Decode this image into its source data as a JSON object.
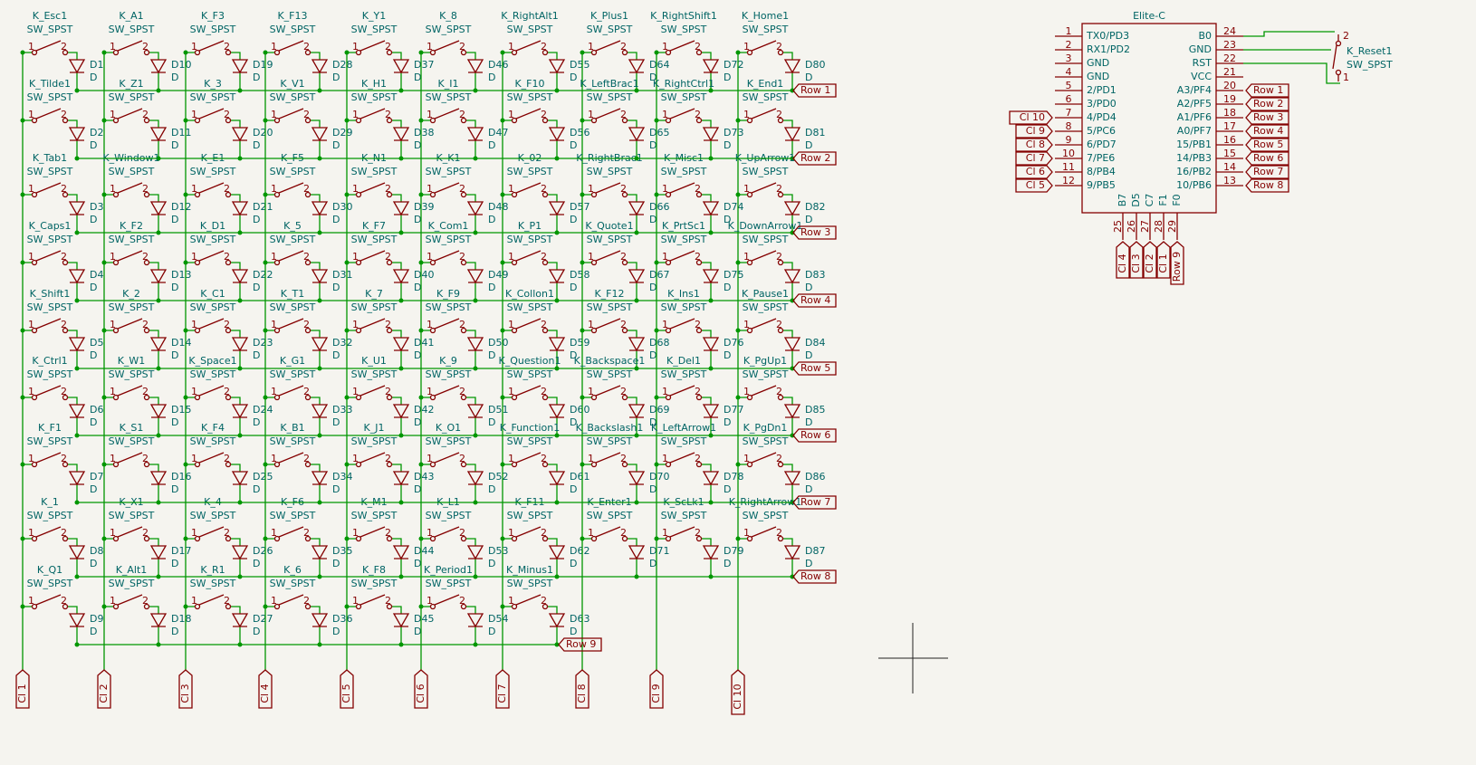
{
  "matrix": {
    "switch_value": "SW_SPST",
    "diode_value": "D",
    "switch_pins": [
      1,
      2
    ],
    "row_labels": [
      "Row 1",
      "Row 2",
      "Row 3",
      "Row 4",
      "Row 5",
      "Row 6",
      "Row 7",
      "Row 8",
      "Row 9"
    ],
    "columns": [
      {
        "label": "Cl 1",
        "switches": [
          {
            "ref": "K_Esc1",
            "diode": "D1"
          },
          {
            "ref": "K_Tilde1",
            "diode": "D2"
          },
          {
            "ref": "K_Tab1",
            "diode": "D3"
          },
          {
            "ref": "K_Caps1",
            "diode": "D4"
          },
          {
            "ref": "K_Shift1",
            "diode": "D5"
          },
          {
            "ref": "K_Ctrl1",
            "diode": "D6"
          },
          {
            "ref": "K_F1",
            "diode": "D7"
          },
          {
            "ref": "K_1",
            "diode": "D8"
          },
          {
            "ref": "K_Q1",
            "diode": "D9"
          }
        ]
      },
      {
        "label": "Cl 2",
        "switches": [
          {
            "ref": "K_A1",
            "diode": "D10"
          },
          {
            "ref": "K_Z1",
            "diode": "D11"
          },
          {
            "ref": "K_Window1",
            "diode": "D12"
          },
          {
            "ref": "K_F2",
            "diode": "D13"
          },
          {
            "ref": "K_2",
            "diode": "D14"
          },
          {
            "ref": "K_W1",
            "diode": "D15"
          },
          {
            "ref": "K_S1",
            "diode": "D16"
          },
          {
            "ref": "K_X1",
            "diode": "D17"
          },
          {
            "ref": "K_Alt1",
            "diode": "D18"
          }
        ]
      },
      {
        "label": "Cl 3",
        "switches": [
          {
            "ref": "K_F3",
            "diode": "D19"
          },
          {
            "ref": "K_3",
            "diode": "D20"
          },
          {
            "ref": "K_E1",
            "diode": "D21"
          },
          {
            "ref": "K_D1",
            "diode": "D22"
          },
          {
            "ref": "K_C1",
            "diode": "D23"
          },
          {
            "ref": "K_Space1",
            "diode": "D24"
          },
          {
            "ref": "K_F4",
            "diode": "D25"
          },
          {
            "ref": "K_4",
            "diode": "D26"
          },
          {
            "ref": "K_R1",
            "diode": "D27"
          }
        ]
      },
      {
        "label": "Cl 4",
        "switches": [
          {
            "ref": "K_F13",
            "diode": "D28"
          },
          {
            "ref": "K_V1",
            "diode": "D29"
          },
          {
            "ref": "K_F5",
            "diode": "D30"
          },
          {
            "ref": "K_5",
            "diode": "D31"
          },
          {
            "ref": "K_T1",
            "diode": "D32"
          },
          {
            "ref": "K_G1",
            "diode": "D33"
          },
          {
            "ref": "K_B1",
            "diode": "D34"
          },
          {
            "ref": "K_F6",
            "diode": "D35"
          },
          {
            "ref": "K_6",
            "diode": "D36"
          }
        ]
      },
      {
        "label": "Cl 5",
        "switches": [
          {
            "ref": "K_Y1",
            "diode": "D37"
          },
          {
            "ref": "K_H1",
            "diode": "D38"
          },
          {
            "ref": "K_N1",
            "diode": "D39"
          },
          {
            "ref": "K_F7",
            "diode": "D40"
          },
          {
            "ref": "K_7",
            "diode": "D41"
          },
          {
            "ref": "K_U1",
            "diode": "D42"
          },
          {
            "ref": "K_J1",
            "diode": "D43"
          },
          {
            "ref": "K_M1",
            "diode": "D44"
          },
          {
            "ref": "K_F8",
            "diode": "D45"
          }
        ]
      },
      {
        "label": "Cl 6",
        "switches": [
          {
            "ref": "K_8",
            "diode": "D46"
          },
          {
            "ref": "K_I1",
            "diode": "D47"
          },
          {
            "ref": "K_K1",
            "diode": "D48"
          },
          {
            "ref": "K_Com1",
            "diode": "D49"
          },
          {
            "ref": "K_F9",
            "diode": "D50"
          },
          {
            "ref": "K_9",
            "diode": "D51"
          },
          {
            "ref": "K_O1",
            "diode": "D52"
          },
          {
            "ref": "K_L1",
            "diode": "D53"
          },
          {
            "ref": "K_Period1",
            "diode": "D54"
          }
        ]
      },
      {
        "label": "Cl 7",
        "switches": [
          {
            "ref": "K_RightAlt1",
            "diode": "D55"
          },
          {
            "ref": "K_F10",
            "diode": "D56"
          },
          {
            "ref": "K_02",
            "diode": "D57"
          },
          {
            "ref": "K_P1",
            "diode": "D58"
          },
          {
            "ref": "K_Collon1",
            "diode": "D59"
          },
          {
            "ref": "K_Question1",
            "diode": "D60"
          },
          {
            "ref": "K_Function1",
            "diode": "D61"
          },
          {
            "ref": "K_F11",
            "diode": "D62"
          },
          {
            "ref": "K_Minus1",
            "diode": "D63"
          }
        ]
      },
      {
        "label": "Cl 8",
        "switches": [
          {
            "ref": "K_Plus1",
            "diode": "D64"
          },
          {
            "ref": "K_LeftBrac1",
            "diode": "D65"
          },
          {
            "ref": "K_RightBrac1",
            "diode": "D66"
          },
          {
            "ref": "K_Quote1",
            "diode": "D67"
          },
          {
            "ref": "K_F12",
            "diode": "D68"
          },
          {
            "ref": "K_Backspace1",
            "diode": "D69"
          },
          {
            "ref": "K_Backslash1",
            "diode": "D70"
          },
          {
            "ref": "K_Enter1",
            "diode": "D71"
          }
        ]
      },
      {
        "label": "Cl 9",
        "switches": [
          {
            "ref": "K_RightShift1",
            "diode": "D72"
          },
          {
            "ref": "K_RightCtrl1",
            "diode": "D73"
          },
          {
            "ref": "K_Misc1",
            "diode": "D74"
          },
          {
            "ref": "K_PrtSc1",
            "diode": "D75"
          },
          {
            "ref": "K_Ins1",
            "diode": "D76"
          },
          {
            "ref": "K_Del1",
            "diode": "D77"
          },
          {
            "ref": "K_LeftArrow1",
            "diode": "D78"
          },
          {
            "ref": "K_ScLk1",
            "diode": "D79"
          }
        ]
      },
      {
        "label": "Cl 10",
        "switches": [
          {
            "ref": "K_Home1",
            "diode": "D80"
          },
          {
            "ref": "K_End1",
            "diode": "D81"
          },
          {
            "ref": "K_UpArrow1",
            "diode": "D82"
          },
          {
            "ref": "K_DownArrow1",
            "diode": "D83"
          },
          {
            "ref": "K_Pause1",
            "diode": "D84"
          },
          {
            "ref": "K_PgUp1",
            "diode": "D85"
          },
          {
            "ref": "K_PgDn1",
            "diode": "D86"
          },
          {
            "ref": "K_RightArrow1",
            "diode": "D87"
          }
        ]
      }
    ]
  },
  "mcu": {
    "value": "Elite-C",
    "left_pins": [
      {
        "number": 1,
        "name": "TX0/PD3"
      },
      {
        "number": 2,
        "name": "RX1/PD2"
      },
      {
        "number": 3,
        "name": "GND"
      },
      {
        "number": 4,
        "name": "GND"
      },
      {
        "number": 5,
        "name": "2/PD1"
      },
      {
        "number": 6,
        "name": "3/PD0"
      },
      {
        "number": 7,
        "name": "4/PD4",
        "net": "Cl 10"
      },
      {
        "number": 8,
        "name": "5/PC6",
        "net": "Cl 9"
      },
      {
        "number": 9,
        "name": "6/PD7",
        "net": "Cl 8"
      },
      {
        "number": 10,
        "name": "7/PE6",
        "net": "Cl 7"
      },
      {
        "number": 11,
        "name": "8/PB4",
        "net": "Cl 6"
      },
      {
        "number": 12,
        "name": "9/PB5",
        "net": "Cl 5"
      }
    ],
    "right_pins": [
      {
        "number": 24,
        "name": "B0"
      },
      {
        "number": 23,
        "name": "GND"
      },
      {
        "number": 22,
        "name": "RST"
      },
      {
        "number": 21,
        "name": "VCC"
      },
      {
        "number": 20,
        "name": "A3/PF4",
        "net": "Row 1"
      },
      {
        "number": 19,
        "name": "A2/PF5",
        "net": "Row 2"
      },
      {
        "number": 18,
        "name": "A1/PF6",
        "net": "Row 3"
      },
      {
        "number": 17,
        "name": "A0/PF7",
        "net": "Row 4"
      },
      {
        "number": 16,
        "name": "15/PB1",
        "net": "Row 5"
      },
      {
        "number": 15,
        "name": "14/PB3",
        "net": "Row 6"
      },
      {
        "number": 14,
        "name": "16/PB2",
        "net": "Row 7"
      },
      {
        "number": 13,
        "name": "10/PB6",
        "net": "Row 8"
      }
    ],
    "bottom_pins": [
      {
        "number": 25,
        "name": "B7",
        "net": "Cl 4"
      },
      {
        "number": 26,
        "name": "D5",
        "net": "Cl 3"
      },
      {
        "number": 27,
        "name": "C7",
        "net": "Cl 2"
      },
      {
        "number": 28,
        "name": "F1",
        "net": "Cl 1"
      },
      {
        "number": 29,
        "name": "F0",
        "net": "Row 9"
      }
    ]
  },
  "reset": {
    "ref": "K_Reset1",
    "value": "SW_SPST",
    "pins": [
      1,
      2
    ]
  }
}
